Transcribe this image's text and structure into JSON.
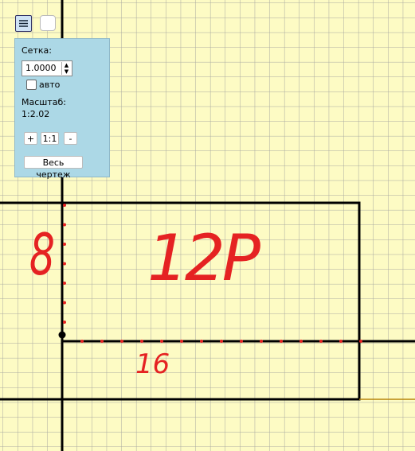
{
  "panel": {
    "grid_label": "Сетка:",
    "grid_value": "1.0000",
    "auto_label": "авто",
    "scale_label": "Масштаб:",
    "scale_value": "1:2.02",
    "zoom_in": "+",
    "zoom_reset": "1:1",
    "zoom_out": "-",
    "fit_button": "Весь чертеж"
  },
  "annotations": {
    "height": "8",
    "label": "12P",
    "width": "16"
  }
}
